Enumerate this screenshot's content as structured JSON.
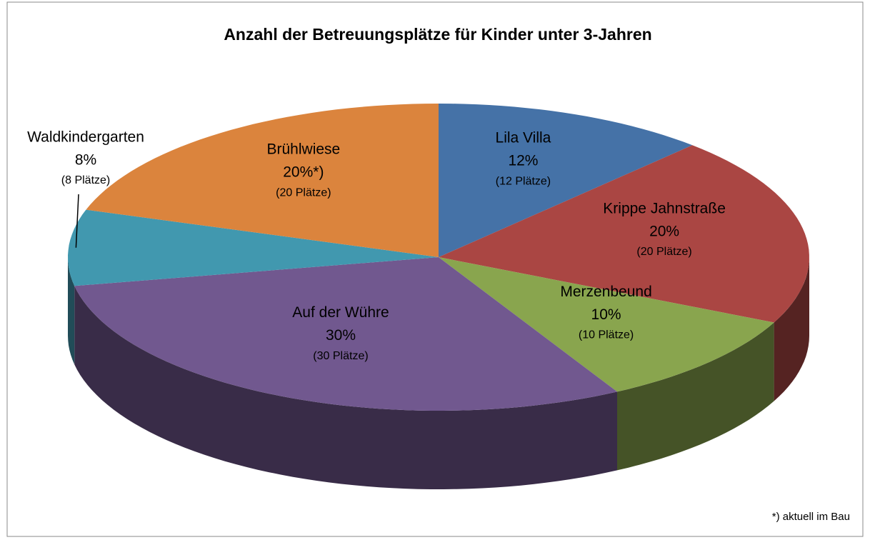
{
  "chart_data": {
    "type": "pie3d",
    "title": "Anzahl der Betreuungsplätze für Kinder unter 3-Jahren",
    "categories": [
      "Lila Villa",
      "Krippe Jahnstraße",
      "Merzenbeund",
      "Auf der Wühre",
      "Waldkindergarten",
      "Brühlwiese"
    ],
    "values": [
      12,
      20,
      10,
      30,
      8,
      20
    ],
    "value_labels": [
      "12%",
      "20%",
      "10%",
      "30%",
      "8%",
      "20%*)"
    ],
    "sublabels": [
      "(12 Plätze)",
      "(20 Plätze)",
      "(10 Plätze)",
      "(30 Plätze)",
      "(8 Plätze)",
      "(20 Plätze)"
    ],
    "colors": [
      "#4572a7",
      "#aa4643",
      "#89a54e",
      "#71588f",
      "#4198af",
      "#db843d"
    ],
    "annotation": "*) aktuell im Bau"
  }
}
